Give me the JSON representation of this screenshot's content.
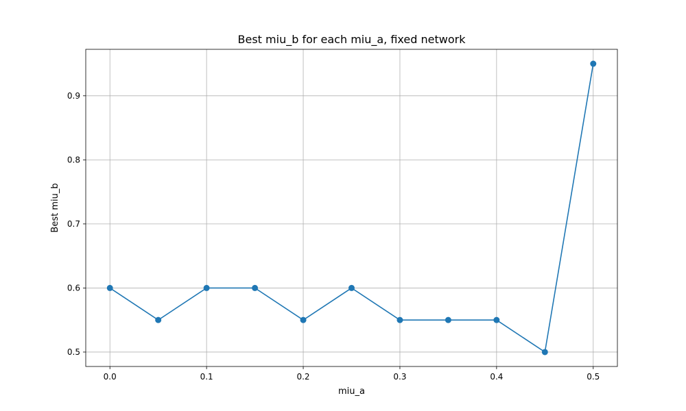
{
  "chart_data": {
    "type": "line",
    "title": "Best miu_b for each miu_a, fixed network",
    "xlabel": "miu_a",
    "ylabel": "Best miu_b",
    "xlim": [
      -0.025,
      0.525
    ],
    "ylim": [
      0.4775,
      0.9725
    ],
    "xticks": [
      0.0,
      0.1,
      0.2,
      0.3,
      0.4,
      0.5
    ],
    "xtick_labels": [
      "0.0",
      "0.1",
      "0.2",
      "0.3",
      "0.4",
      "0.5"
    ],
    "yticks": [
      0.5,
      0.6,
      0.7,
      0.8,
      0.9
    ],
    "ytick_labels": [
      "0.5",
      "0.6",
      "0.7",
      "0.8",
      "0.9"
    ],
    "grid": true,
    "series": [
      {
        "color": "#1f77b4",
        "marker": "circle",
        "x": [
          0.0,
          0.05,
          0.1,
          0.15,
          0.2,
          0.25,
          0.3,
          0.35,
          0.4,
          0.45,
          0.5
        ],
        "y": [
          0.6,
          0.55,
          0.6,
          0.6,
          0.55,
          0.6,
          0.55,
          0.55,
          0.55,
          0.5,
          0.95
        ]
      }
    ]
  }
}
